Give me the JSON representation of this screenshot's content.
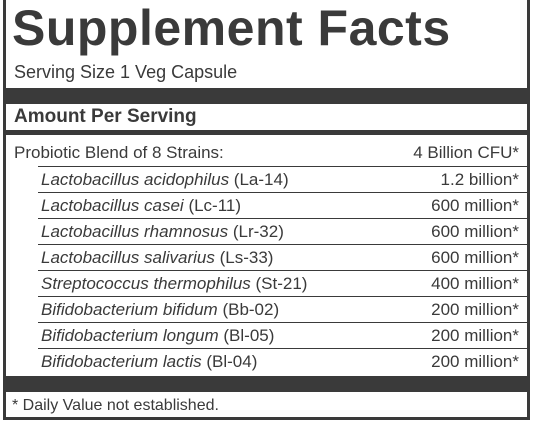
{
  "header": {
    "title": "Supplement Facts",
    "serving_size": "Serving Size 1 Veg Capsule"
  },
  "section": {
    "heading": "Amount Per Serving"
  },
  "blend": {
    "name": "Probiotic Blend of 8 Strains:",
    "amount": "4 Billion CFU*"
  },
  "strains": [
    {
      "name": "Lactobacillus acidophilus",
      "code": "(La-14)",
      "amount": "1.2 billion*"
    },
    {
      "name": "Lactobacillus casei",
      "code": "(Lc-11)",
      "amount": "600 million*"
    },
    {
      "name": "Lactobacillus rhamnosus",
      "code": "(Lr-32)",
      "amount": "600 million*"
    },
    {
      "name": "Lactobacillus salivarius",
      "code": "(Ls-33)",
      "amount": "600 million*"
    },
    {
      "name": "Streptococcus thermophilus",
      "code": "(St-21)",
      "amount": "400 million*"
    },
    {
      "name": "Bifidobacterium bifidum",
      "code": "(Bb-02)",
      "amount": "200 million*"
    },
    {
      "name": "Bifidobacterium longum",
      "code": "(Bl-05)",
      "amount": "200 million*"
    },
    {
      "name": "Bifidobacterium lactis",
      "code": "(Bl-04)",
      "amount": "200 million*"
    }
  ],
  "footnote": "* Daily Value not established."
}
